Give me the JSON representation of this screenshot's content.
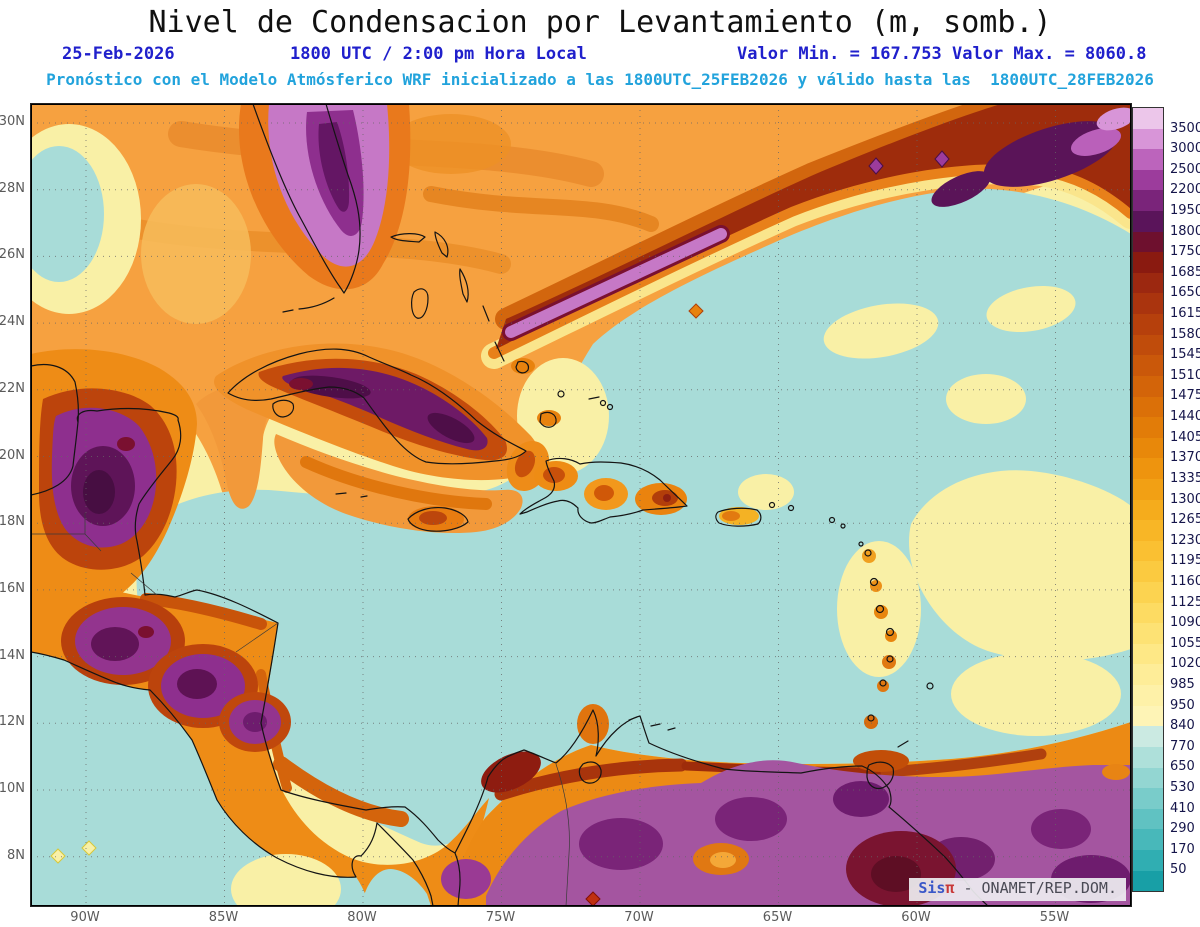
{
  "title": "Nivel de Condensacion por Levantamiento (m, somb.)",
  "header": {
    "date": "25-Feb-2026",
    "time": "1800 UTC / 2:00 pm Hora Local",
    "valor_min": "Valor Min. = 167.753",
    "valor_max": "Valor Max. = 8060.8",
    "forecast_line": "Pronóstico con el Modelo Atmósferico WRF inicializado a las 1800UTC_25FEB2026 y válido hasta las  1800UTC_28FEB2026"
  },
  "map": {
    "lat_labels": [
      "30N",
      "28N",
      "26N",
      "24N",
      "22N",
      "20N",
      "18N",
      "16N",
      "14N",
      "12N",
      "10N",
      "8N"
    ],
    "lon_labels": [
      "90W",
      "85W",
      "80W",
      "75W",
      "70W",
      "65W",
      "60W",
      "55W"
    ]
  },
  "colorbar": {
    "tick_labels": [
      "3500",
      "3000",
      "2500",
      "2200",
      "1950",
      "1800",
      "1750",
      "1685",
      "1650",
      "1615",
      "1580",
      "1545",
      "1510",
      "1475",
      "1440",
      "1405",
      "1370",
      "1335",
      "1300",
      "1265",
      "1230",
      "1195",
      "1160",
      "1125",
      "1090",
      "1055",
      "1020",
      "985",
      "950",
      "840",
      "770",
      "650",
      "530",
      "410",
      "290",
      "170",
      "50"
    ],
    "segment_colors": [
      "#ECC6EA",
      "#D895D8",
      "#BC64BC",
      "#9C3C9C",
      "#7A247A",
      "#5A145A",
      "#6E102E",
      "#8A1A10",
      "#9C2810",
      "#AA340E",
      "#B6400C",
      "#C04C0B",
      "#CA580A",
      "#D36409",
      "#DB7008",
      "#E27C08",
      "#E8880A",
      "#EE940E",
      "#F2A014",
      "#F5AC1C",
      "#F8B626",
      "#FAC032",
      "#FBCA40",
      "#FCD350",
      "#FDDB62",
      "#FDE274",
      "#FEE886",
      "#FEED98",
      "#FEF1A8",
      "#FEF4B6",
      "#CBEAE2",
      "#AEE0DA",
      "#93D6D2",
      "#79CCCA",
      "#60C2C2",
      "#48B8BA",
      "#30AEB2",
      "#189FA6"
    ]
  },
  "watermark": {
    "brand": "Sis",
    "pi": "π",
    "suffix": " - ONAMET/REP.DOM."
  },
  "colors": {
    "header_blue": "#2020CC",
    "forecast_cyan": "#22A3DC",
    "sea_teal": "#A8DCD8",
    "pale_yellow": "#F9F0A6",
    "orange_main": "#F6A140",
    "band_red": "#9E2C0C",
    "purple": "#8E2F8E",
    "magenta": "#A455A0"
  }
}
